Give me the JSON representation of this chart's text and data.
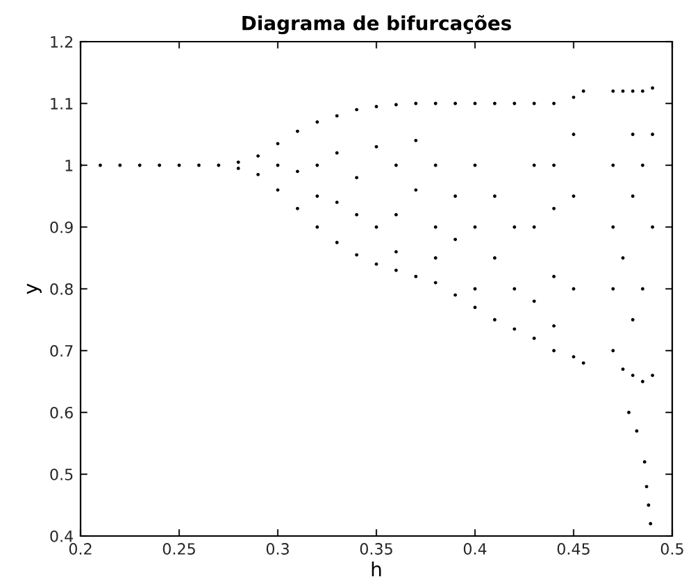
{
  "chart_data": {
    "type": "scatter",
    "title": "Diagrama de bifurcações",
    "xlabel": "h",
    "ylabel": "y",
    "xlim": [
      0.2,
      0.5
    ],
    "ylim": [
      0.4,
      1.2
    ],
    "xticks": [
      0.2,
      0.25,
      0.3,
      0.35,
      0.4,
      0.45,
      0.5
    ],
    "yticks": [
      0.4,
      0.5,
      0.6,
      0.7,
      0.8,
      0.9,
      1,
      1.1,
      1.2
    ],
    "grid": false,
    "marker": "circle",
    "series": [
      {
        "color": "#000000",
        "x": [
          0.2,
          0.21,
          0.22,
          0.23,
          0.24,
          0.25,
          0.26,
          0.27,
          0.28,
          0.28,
          0.29,
          0.29,
          0.3,
          0.3,
          0.3,
          0.31,
          0.31,
          0.31,
          0.32,
          0.32,
          0.32,
          0.32,
          0.33,
          0.33,
          0.33,
          0.33,
          0.34,
          0.34,
          0.34,
          0.34,
          0.35,
          0.35,
          0.35,
          0.35,
          0.36,
          0.36,
          0.36,
          0.36,
          0.36,
          0.37,
          0.37,
          0.37,
          0.37,
          0.38,
          0.38,
          0.38,
          0.38,
          0.38,
          0.39,
          0.39,
          0.39,
          0.39,
          0.4,
          0.4,
          0.4,
          0.4,
          0.4,
          0.41,
          0.41,
          0.41,
          0.41,
          0.42,
          0.42,
          0.42,
          0.42,
          0.43,
          0.43,
          0.43,
          0.43,
          0.43,
          0.44,
          0.44,
          0.44,
          0.44,
          0.44,
          0.44,
          0.45,
          0.45,
          0.45,
          0.45,
          0.45,
          0.455,
          0.455,
          0.47,
          0.47,
          0.47,
          0.47,
          0.47,
          0.475,
          0.475,
          0.475,
          0.48,
          0.48,
          0.48,
          0.48,
          0.48,
          0.485,
          0.485,
          0.485,
          0.485,
          0.49,
          0.49,
          0.49,
          0.49,
          0.478,
          0.482,
          0.486,
          0.487,
          0.488,
          0.489
        ],
        "values": [
          1,
          1,
          1,
          1,
          1,
          1,
          1,
          1,
          1.005,
          0.995,
          1.015,
          0.985,
          1.035,
          0.96,
          1.0,
          1.055,
          0.93,
          0.99,
          1.07,
          0.9,
          1.0,
          0.95,
          1.08,
          0.875,
          1.02,
          0.94,
          1.09,
          0.855,
          0.98,
          0.92,
          1.095,
          0.84,
          1.03,
          0.9,
          1.098,
          0.83,
          1.0,
          0.92,
          0.86,
          1.1,
          0.82,
          0.96,
          1.04,
          1.1,
          0.81,
          0.9,
          1.0,
          0.85,
          1.1,
          0.79,
          0.95,
          0.88,
          1.1,
          0.77,
          0.9,
          1.0,
          0.8,
          1.1,
          0.75,
          0.85,
          0.95,
          1.1,
          0.735,
          0.8,
          0.9,
          1.1,
          0.72,
          0.78,
          0.9,
          1.0,
          1.1,
          0.7,
          0.82,
          0.93,
          1.0,
          0.74,
          1.11,
          0.69,
          0.8,
          0.95,
          1.05,
          1.12,
          0.68,
          1.12,
          0.7,
          0.8,
          0.9,
          1.0,
          1.12,
          0.67,
          0.85,
          1.12,
          0.66,
          0.75,
          0.95,
          1.05,
          1.12,
          0.65,
          0.8,
          1.0,
          1.125,
          0.66,
          0.9,
          1.05,
          0.6,
          0.57,
          0.52,
          0.48,
          0.45,
          0.42
        ]
      }
    ]
  }
}
